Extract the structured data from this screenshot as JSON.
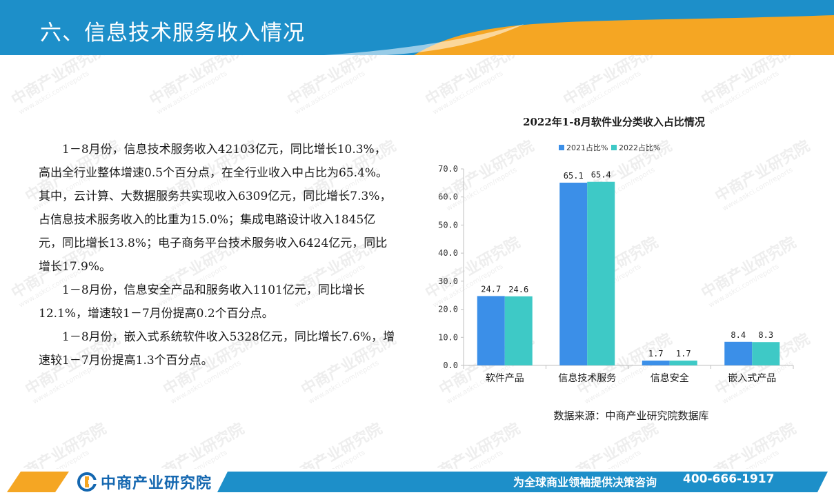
{
  "header": {
    "title": "六、信息技术服务收入情况"
  },
  "watermark": {
    "text": "中商产业研究院",
    "sub": "www.askci.com/reports"
  },
  "body": {
    "paragraphs": [
      "1－8月份，信息技术服务收入42103亿元，同比增长10.3%，高出全行业整体增速0.5个百分点，在全行业收入中占比为65.4%。其中，云计算、大数据服务共实现收入6309亿元，同比增长7.3%，占信息技术服务收入的比重为15.0%；集成电路设计收入1845亿元，同比增长13.8%；电子商务平台技术服务收入6424亿元，同比增长17.9%。",
      "1－8月份，信息安全产品和服务收入1101亿元，同比增长12.1%，增速较1－7月份提高0.2个百分点。",
      "1－8月份，嵌入式系统软件收入5328亿元，同比增长7.6%，增速较1－7月份提高1.3个百分点。"
    ]
  },
  "chart_data": {
    "type": "bar",
    "title": "2022年1-8月软件业分类收入占比情况",
    "categories": [
      "软件产品",
      "信息技术服务",
      "信息安全",
      "嵌入式产品"
    ],
    "series": [
      {
        "name": "2021占比%",
        "values": [
          24.7,
          65.1,
          1.7,
          8.4
        ],
        "color": "#3b8fe8"
      },
      {
        "name": "2022占比%",
        "values": [
          24.6,
          65.4,
          1.7,
          8.3
        ],
        "color": "#3ec9c6"
      }
    ],
    "ylim": [
      0,
      70
    ],
    "yticks": [
      "0.0",
      "10.0",
      "20.0",
      "30.0",
      "40.0",
      "50.0",
      "60.0",
      "70.0"
    ],
    "data_labels": [
      [
        "24.7",
        "65.1",
        "1.7",
        "8.4"
      ],
      [
        "24.6",
        "65.4",
        "1.7",
        "8.3"
      ]
    ],
    "legend": "top",
    "grid": false
  },
  "source": {
    "text": "数据来源：中商产业研究院数据库"
  },
  "footer": {
    "logo_text": "中商产业研究院",
    "slogan": "为全球商业领袖提供决策咨询",
    "phone": "400-666-1917"
  },
  "colors": {
    "header_blue": "#1d8fc9",
    "accent_orange": "#f5a623",
    "footer_blue": "#1d8fc9"
  }
}
